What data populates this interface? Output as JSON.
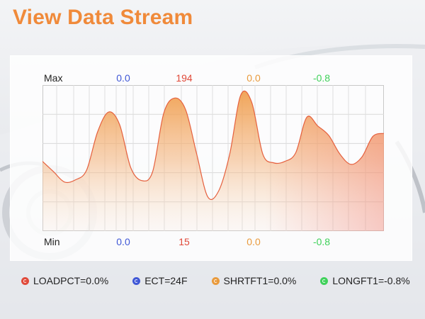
{
  "title": "View Data Stream",
  "axis": {
    "max_label": "Max",
    "min_label": "Min"
  },
  "sensors": [
    {
      "name": "LOADPCT",
      "label": "LOADPCT=0.0%",
      "max": "0.0",
      "min": "0.0",
      "color": "#e04a3a",
      "icon": "sensor-dot-icon"
    },
    {
      "name": "ECT",
      "label": "ECT=24F",
      "max": "0.0",
      "min": "0.0",
      "color": "#3f57d6",
      "icon": "sensor-dot-icon"
    },
    {
      "name": "SHRTFT1",
      "label": "SHRTFT1=0.0%",
      "max": "0.0",
      "min": "0.0",
      "color": "#e99a3c",
      "icon": "sensor-dot-icon"
    },
    {
      "name": "LONGFT1",
      "label": "LONGFT1=-0.8%",
      "max": "-0.8",
      "min": "-0.8",
      "color": "#3fd15a",
      "icon": "sensor-dot-icon"
    }
  ],
  "column_values": {
    "max": [
      "0.0",
      "194",
      "0.0",
      "-0.8"
    ],
    "min": [
      "0.0",
      "15",
      "0.0",
      "-0.8"
    ],
    "colors": [
      "#3f57d6",
      "#e04a3a",
      "#e99a3c",
      "#3fd15a"
    ]
  },
  "chart_data": {
    "type": "area",
    "title": "",
    "xlabel": "",
    "ylabel": "",
    "ylim": [
      15,
      194
    ],
    "grid": true,
    "series": [
      {
        "values": [
          100,
          86,
          72,
          75,
          88,
          140,
          167,
          150,
          92,
          74,
          86,
          165,
          186,
          170,
          110,
          52,
          60,
          110,
          190,
          180,
          110,
          98,
          100,
          112,
          160,
          148,
          135,
          110,
          96,
          106,
          134,
          138
        ]
      }
    ]
  }
}
